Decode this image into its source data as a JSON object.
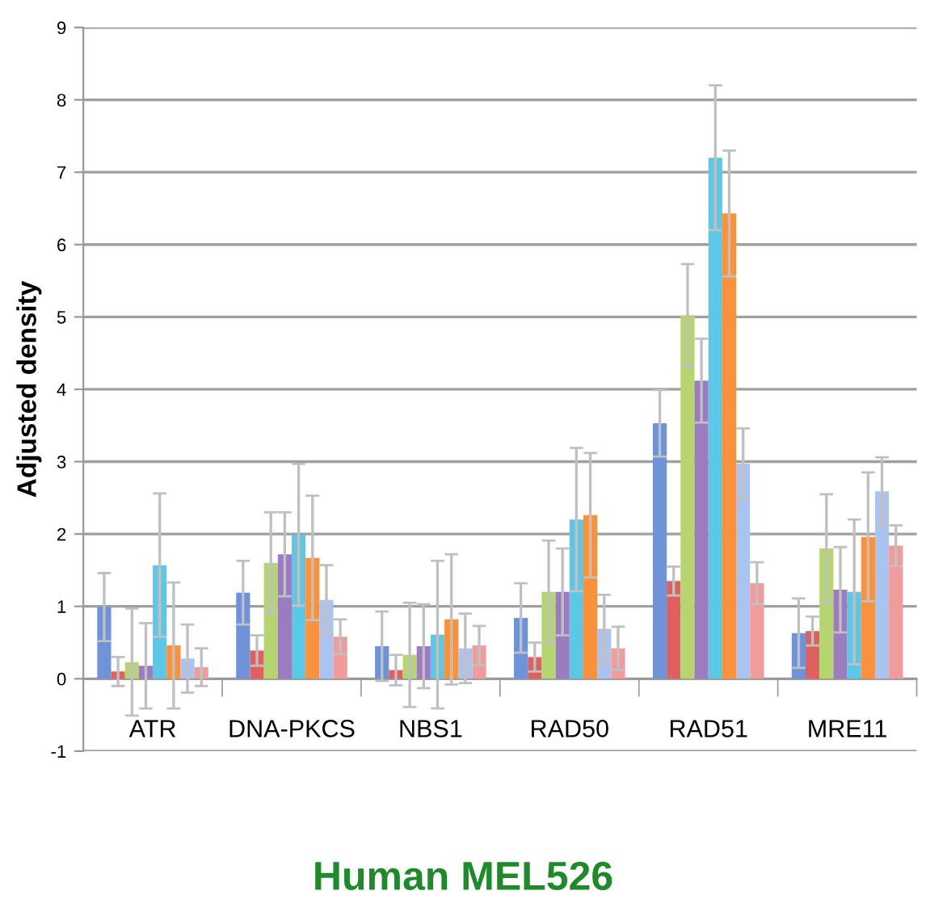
{
  "chart_data": {
    "type": "bar",
    "title": "Human MEL526",
    "ylabel": "Adjusted density",
    "categories": [
      "ATR",
      "DNA-PKCS",
      "NBS1",
      "RAD50",
      "RAD51",
      "MRE11"
    ],
    "series": [
      {
        "color": "#6f93d6",
        "values": [
          0.99,
          1.19,
          0.45,
          0.84,
          3.53,
          0.63
        ],
        "errors": [
          0.47,
          0.44,
          0.48,
          0.48,
          0.46,
          0.48
        ]
      },
      {
        "color": "#e0605e",
        "values": [
          0.1,
          0.39,
          0.12,
          0.3,
          1.35,
          0.66
        ],
        "errors": [
          0.2,
          0.21,
          0.21,
          0.2,
          0.2,
          0.2
        ]
      },
      {
        "color": "#b5d56e",
        "values": [
          0.23,
          1.6,
          0.33,
          1.2,
          5.02,
          1.8
        ],
        "errors": [
          0.74,
          0.7,
          0.72,
          0.71,
          0.71,
          0.75
        ]
      },
      {
        "color": "#9b7cc0",
        "values": [
          0.18,
          1.72,
          0.45,
          1.2,
          4.12,
          1.23
        ],
        "errors": [
          0.59,
          0.58,
          0.58,
          0.6,
          0.58,
          0.59
        ]
      },
      {
        "color": "#5bc8e8",
        "values": [
          1.57,
          1.99,
          0.61,
          2.2,
          7.2,
          1.2
        ],
        "errors": [
          0.99,
          0.98,
          1.02,
          0.99,
          1.0,
          1.0
        ]
      },
      {
        "color": "#f8923d",
        "values": [
          0.46,
          1.67,
          0.82,
          2.26,
          6.43,
          1.96
        ],
        "errors": [
          0.87,
          0.86,
          0.9,
          0.86,
          0.87,
          0.89
        ]
      },
      {
        "color": "#a9c4f0",
        "values": [
          0.28,
          1.09,
          0.42,
          0.69,
          2.97,
          2.59
        ],
        "errors": [
          0.47,
          0.48,
          0.48,
          0.47,
          0.49,
          0.47
        ]
      },
      {
        "color": "#f09c9c",
        "values": [
          0.16,
          0.58,
          0.46,
          0.42,
          1.32,
          1.84
        ],
        "errors": [
          0.26,
          0.24,
          0.27,
          0.3,
          0.29,
          0.28
        ]
      }
    ],
    "ylim": [
      -1,
      9
    ],
    "yticks": [
      -1,
      0,
      1,
      2,
      3,
      4,
      5,
      6,
      7,
      8,
      9
    ],
    "grid": "y"
  }
}
